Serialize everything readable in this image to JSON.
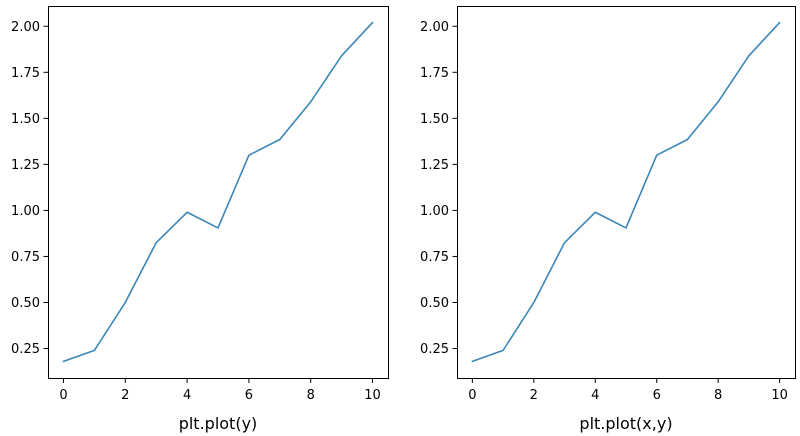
{
  "colors": {
    "series": "#3a86b9"
  },
  "chart_data": [
    {
      "type": "line",
      "xlabel": "plt.plot(y)",
      "ylabel": "",
      "title": "",
      "x": [
        0,
        1,
        2,
        3,
        4,
        5,
        6,
        7,
        8,
        9,
        10
      ],
      "series": [
        {
          "values": [
            0.18,
            0.24,
            0.5,
            0.825,
            0.99,
            0.905,
            1.3,
            1.385,
            1.59,
            1.84,
            2.02
          ]
        }
      ],
      "xlim": [
        -0.5,
        10.5
      ],
      "ylim": [
        0.09,
        2.11
      ],
      "xticks": [
        0,
        2,
        4,
        6,
        8,
        10
      ],
      "xtick_labels": [
        "0",
        "2",
        "4",
        "6",
        "8",
        "10"
      ],
      "yticks": [
        0.25,
        0.5,
        0.75,
        1.0,
        1.25,
        1.5,
        1.75,
        2.0
      ],
      "ytick_labels": [
        "0.25",
        "0.50",
        "0.75",
        "1.00",
        "1.25",
        "1.50",
        "1.75",
        "2.00"
      ],
      "grid": false,
      "legend": "none"
    },
    {
      "type": "line",
      "xlabel": "plt.plot(x,y)",
      "ylabel": "",
      "title": "",
      "x": [
        0,
        1,
        2,
        3,
        4,
        5,
        6,
        7,
        8,
        9,
        10
      ],
      "series": [
        {
          "values": [
            0.18,
            0.24,
            0.5,
            0.825,
            0.99,
            0.905,
            1.3,
            1.385,
            1.59,
            1.84,
            2.02
          ]
        }
      ],
      "xlim": [
        -0.5,
        10.5
      ],
      "ylim": [
        0.09,
        2.11
      ],
      "xticks": [
        0,
        2,
        4,
        6,
        8,
        10
      ],
      "xtick_labels": [
        "0",
        "2",
        "4",
        "6",
        "8",
        "10"
      ],
      "yticks": [
        0.25,
        0.5,
        0.75,
        1.0,
        1.25,
        1.5,
        1.75,
        2.0
      ],
      "ytick_labels": [
        "0.25",
        "0.50",
        "0.75",
        "1.00",
        "1.25",
        "1.50",
        "1.75",
        "2.00"
      ],
      "grid": false,
      "legend": "none"
    }
  ]
}
